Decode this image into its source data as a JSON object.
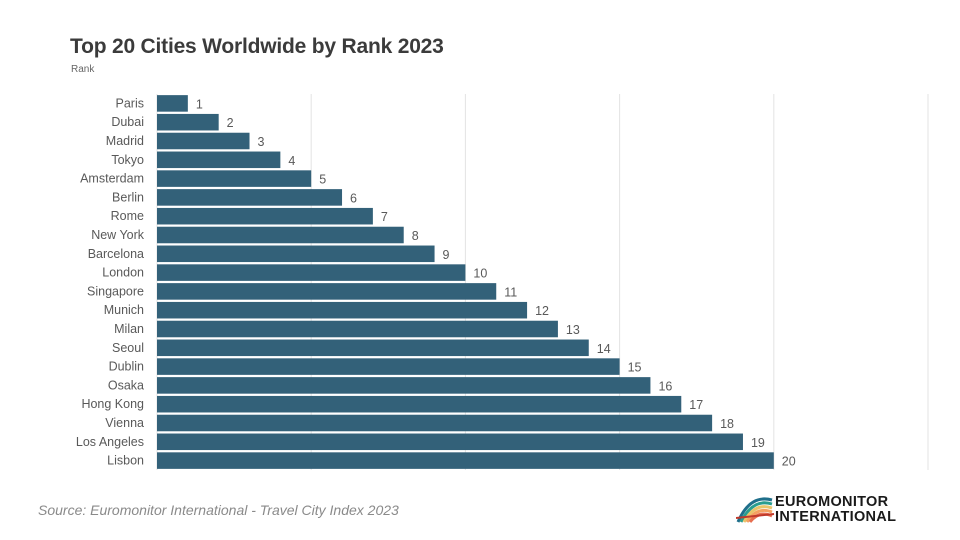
{
  "chart_data": {
    "type": "bar",
    "orientation": "horizontal",
    "title": "Top 20 Cities Worldwide by Rank 2023",
    "subtitle": "Rank",
    "categories": [
      "Paris",
      "Dubai",
      "Madrid",
      "Tokyo",
      "Amsterdam",
      "Berlin",
      "Rome",
      "New York",
      "Barcelona",
      "London",
      "Singapore",
      "Munich",
      "Milan",
      "Seoul",
      "Dublin",
      "Osaka",
      "Hong Kong",
      "Vienna",
      "Los Angeles",
      "Lisbon"
    ],
    "values": [
      1,
      2,
      3,
      4,
      5,
      6,
      7,
      8,
      9,
      10,
      11,
      12,
      13,
      14,
      15,
      16,
      17,
      18,
      19,
      20
    ],
    "xlim": [
      0,
      25
    ],
    "grid": true,
    "bar_color": "#336179",
    "grid_color": "#e3e3e3",
    "label_color": "#595959"
  },
  "footer": {
    "source": "Source: Euromonitor International - Travel City Index 2023",
    "logo_line1": "EUROMONITOR",
    "logo_line2": "INTERNATIONAL"
  }
}
